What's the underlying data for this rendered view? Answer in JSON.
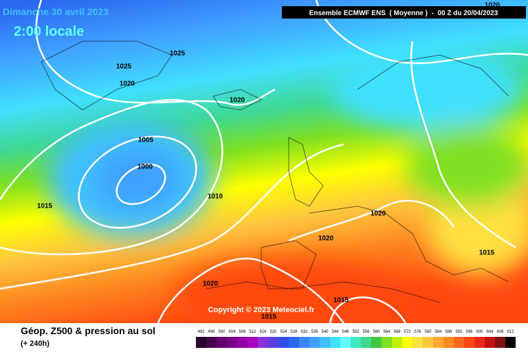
{
  "header": {
    "date": "Dimanche 30 avril 2023",
    "time": "2:00 locale",
    "model": "Ensemble ECMWF ENS  ( Moyenne )  -  00 Z du 20/04/2023"
  },
  "map": {
    "copyright": "Copyright © 2023 Meteociel.fr",
    "isobar_labels": [
      1020,
      1025,
      1025,
      1020,
      1020,
      1005,
      1000,
      1015,
      1010,
      1020,
      1020,
      1015,
      1020,
      1015,
      1015
    ]
  },
  "footer": {
    "title": "Géop. Z500 & pression au sol",
    "subtitle": "(+ 240h)"
  },
  "legend": {
    "values": [
      492,
      496,
      500,
      504,
      508,
      512,
      516,
      520,
      524,
      528,
      532,
      536,
      540,
      544,
      548,
      552,
      556,
      560,
      564,
      568,
      572,
      576,
      580,
      584,
      588,
      592,
      596,
      600,
      604,
      608,
      612
    ],
    "colors": [
      "#2a0030",
      "#46004e",
      "#62006c",
      "#7a0088",
      "#9400a4",
      "#ac00c0",
      "#8a30d4",
      "#5a40e0",
      "#3050e8",
      "#2a68f0",
      "#3a84ff",
      "#40a0ff",
      "#40c0ff",
      "#40e0ff",
      "#60ffff",
      "#40e8c0",
      "#40d890",
      "#40c840",
      "#80e020",
      "#c0f000",
      "#ffff00",
      "#ffe040",
      "#ffc840",
      "#ffa830",
      "#ff8820",
      "#ff6820",
      "#ff4810",
      "#e82818",
      "#c01010",
      "#801010",
      "#000000"
    ]
  }
}
